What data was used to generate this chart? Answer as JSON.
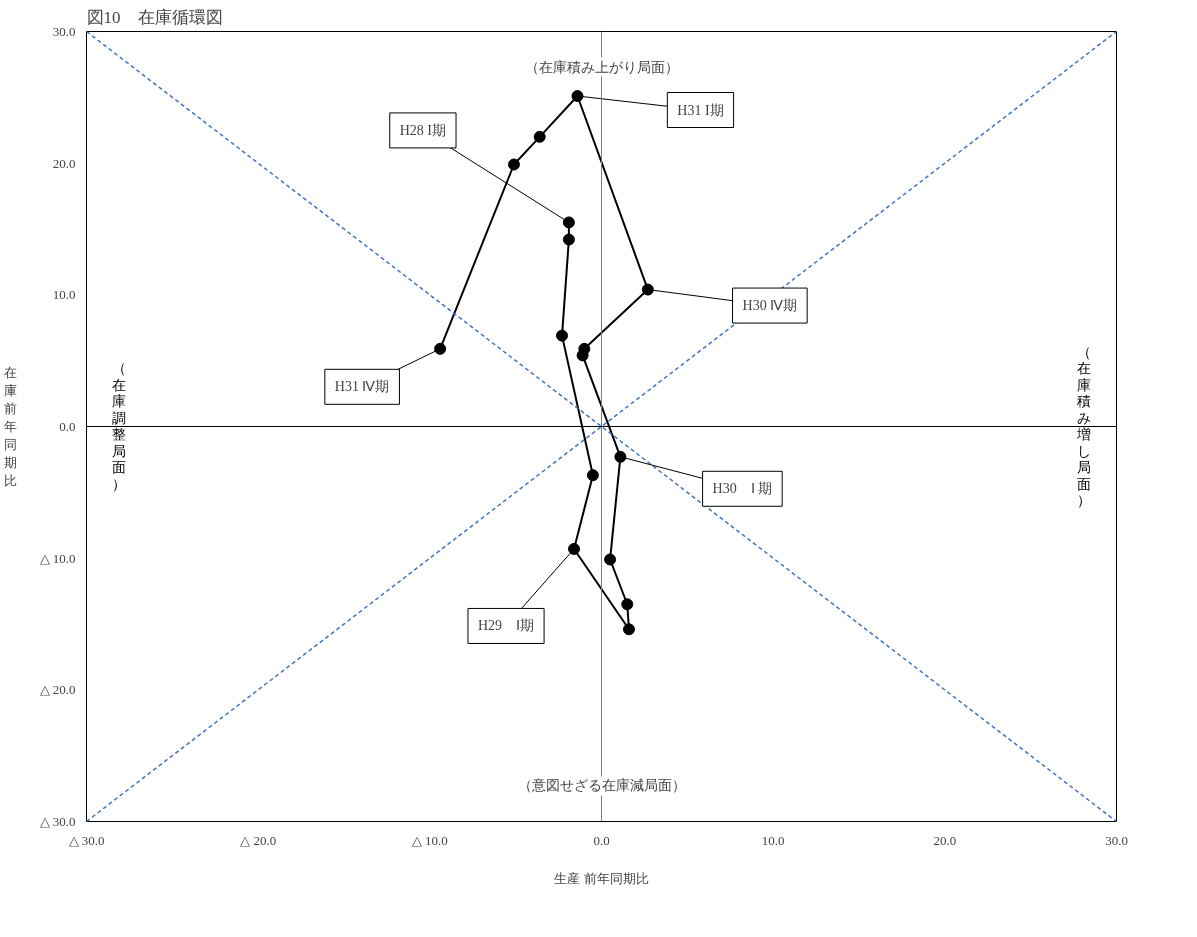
{
  "chart_data": {
    "type": "line",
    "title": "図10　在庫循環図",
    "xlabel": "生産 前年同期比",
    "ylabel": "在庫前年同期比",
    "xlim": [
      -30,
      30
    ],
    "ylim": [
      -30,
      30
    ],
    "xticks": [
      {
        "value": -30,
        "label": "△ 30.0"
      },
      {
        "value": -20,
        "label": "△ 20.0"
      },
      {
        "value": -10,
        "label": "△ 10.0"
      },
      {
        "value": 0,
        "label": "0.0"
      },
      {
        "value": 10,
        "label": "10.0"
      },
      {
        "value": 20,
        "label": "20.0"
      },
      {
        "value": 30,
        "label": "30.0"
      }
    ],
    "yticks": [
      {
        "value": -30,
        "label": "△ 30.0"
      },
      {
        "value": -20,
        "label": "△ 20.0"
      },
      {
        "value": -10,
        "label": "△ 10.0"
      },
      {
        "value": 0,
        "label": "0.0"
      },
      {
        "value": 10,
        "label": "10.0"
      },
      {
        "value": 20,
        "label": "20.0"
      },
      {
        "value": 30,
        "label": "30.0"
      }
    ],
    "grid": false,
    "marker": "circle",
    "line_style": "solid",
    "series": [
      {
        "color": "#000000",
        "x": [
          -1.9,
          -1.9,
          -2.3,
          -0.5,
          -1.6,
          1.6,
          1.5,
          0.5,
          1.1,
          -1.1,
          -1.0,
          2.7,
          -1.4,
          -3.6,
          -5.1,
          -9.4
        ],
        "values": [
          15.5,
          14.2,
          6.9,
          -3.7,
          -9.3,
          -15.4,
          -13.5,
          -10.1,
          -2.3,
          5.4,
          5.9,
          10.4,
          25.1,
          22.0,
          19.9,
          5.9
        ]
      },
      {
        "type": "line",
        "color": "#4472c4",
        "marker": "none",
        "line_style": "dashed",
        "x": [
          -30,
          30
        ],
        "values": [
          -30,
          30
        ]
      },
      {
        "type": "line",
        "color": "#4472c4",
        "marker": "none",
        "line_style": "dashed",
        "x": [
          -30,
          30
        ],
        "values": [
          30,
          -30
        ]
      }
    ],
    "ref_lines": [
      {
        "axis": "x",
        "value": 0,
        "color": "#808080"
      },
      {
        "axis": "y",
        "value": 0,
        "color": "#000000"
      }
    ],
    "annotations": [
      {
        "text": "H28 I期",
        "x": -1.9,
        "y": 15.5
      },
      {
        "text": "H31 I期",
        "x": -1.4,
        "y": 25.1
      },
      {
        "text": "H30 Ⅳ期",
        "x": 2.7,
        "y": 10.4
      },
      {
        "text": "H31 Ⅳ期",
        "x": -9.4,
        "y": 5.9
      },
      {
        "text": "H30　Ⅰ 期",
        "x": 1.1,
        "y": -2.3
      },
      {
        "text": "H29　Ⅰ期",
        "x": -1.6,
        "y": -9.3
      },
      "（在庫積み上がり局面）",
      "（意図せざる在庫減局面）",
      "（在庫調整局面）",
      "（在庫積み増し局面）"
    ]
  }
}
